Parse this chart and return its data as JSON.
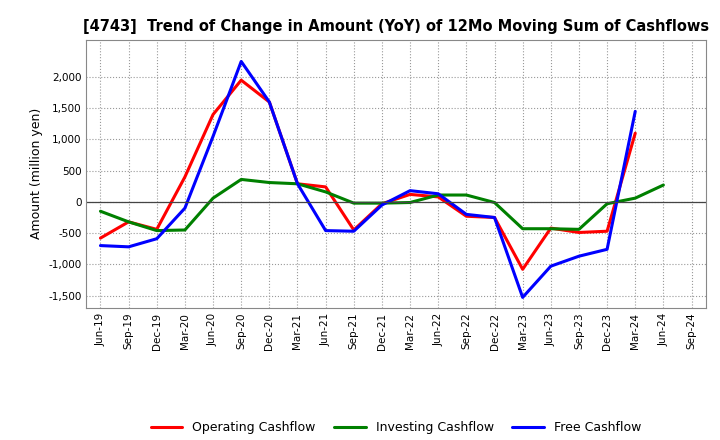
{
  "title": "[4743]  Trend of Change in Amount (YoY) of 12Mo Moving Sum of Cashflows",
  "ylabel": "Amount (million yen)",
  "x_labels": [
    "Jun-19",
    "Sep-19",
    "Dec-19",
    "Mar-20",
    "Jun-20",
    "Sep-20",
    "Dec-20",
    "Mar-21",
    "Jun-21",
    "Sep-21",
    "Dec-21",
    "Mar-22",
    "Jun-22",
    "Sep-22",
    "Dec-22",
    "Mar-23",
    "Jun-23",
    "Sep-23",
    "Dec-23",
    "Mar-24",
    "Jun-24",
    "Sep-24"
  ],
  "operating": [
    -580,
    -320,
    -440,
    400,
    1400,
    1950,
    1600,
    290,
    240,
    -450,
    -30,
    120,
    80,
    -230,
    -250,
    -1080,
    -420,
    -490,
    -470,
    1100,
    null,
    null
  ],
  "investing": [
    -150,
    -320,
    -460,
    -450,
    60,
    360,
    310,
    290,
    160,
    -20,
    -20,
    -10,
    110,
    110,
    -10,
    -430,
    -430,
    -440,
    -30,
    60,
    270,
    null
  ],
  "free": [
    -700,
    -720,
    -590,
    -100,
    1050,
    2250,
    1600,
    290,
    -460,
    -470,
    -50,
    180,
    130,
    -200,
    -250,
    -1530,
    -1030,
    -870,
    -760,
    1450,
    null,
    null
  ],
  "ylim": [
    -1700,
    2600
  ],
  "yticks": [
    -1500,
    -1000,
    -500,
    0,
    500,
    1000,
    1500,
    2000
  ],
  "operating_color": "#ff0000",
  "investing_color": "#008000",
  "free_color": "#0000ff",
  "background_color": "#ffffff",
  "grid_color": "#999999"
}
